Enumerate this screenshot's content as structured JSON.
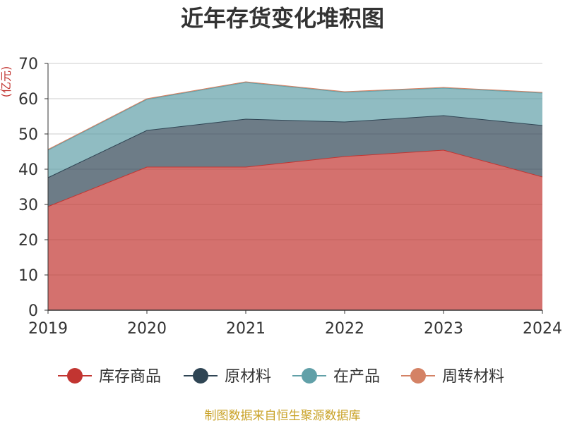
{
  "chart_data": {
    "type": "area",
    "stacked": true,
    "title": "近年存货变化堆积图",
    "ylabel": "(亿元)",
    "xlabel": "",
    "categories": [
      "2019",
      "2020",
      "2021",
      "2022",
      "2023",
      "2024"
    ],
    "ylim": [
      0,
      70
    ],
    "yticks": [
      0,
      10,
      20,
      30,
      40,
      50,
      60,
      70
    ],
    "grid": true,
    "legend": "bottom",
    "series": [
      {
        "name": "库存商品",
        "color": "#c23531",
        "values": [
          29.4,
          40.6,
          40.6,
          43.6,
          45.4,
          37.8
        ]
      },
      {
        "name": "原材料",
        "color": "#2f4554",
        "values": [
          8.2,
          10.4,
          13.6,
          9.8,
          9.8,
          14.6
        ]
      },
      {
        "name": "在产品",
        "color": "#61a0a8",
        "values": [
          7.8,
          8.8,
          10.4,
          8.4,
          7.8,
          9.2
        ]
      },
      {
        "name": "周转材料",
        "color": "#d48265",
        "values": [
          0.2,
          0.2,
          0.2,
          0.2,
          0.2,
          0.2
        ]
      }
    ]
  },
  "footer": "制图数据来自恒生聚源数据库"
}
